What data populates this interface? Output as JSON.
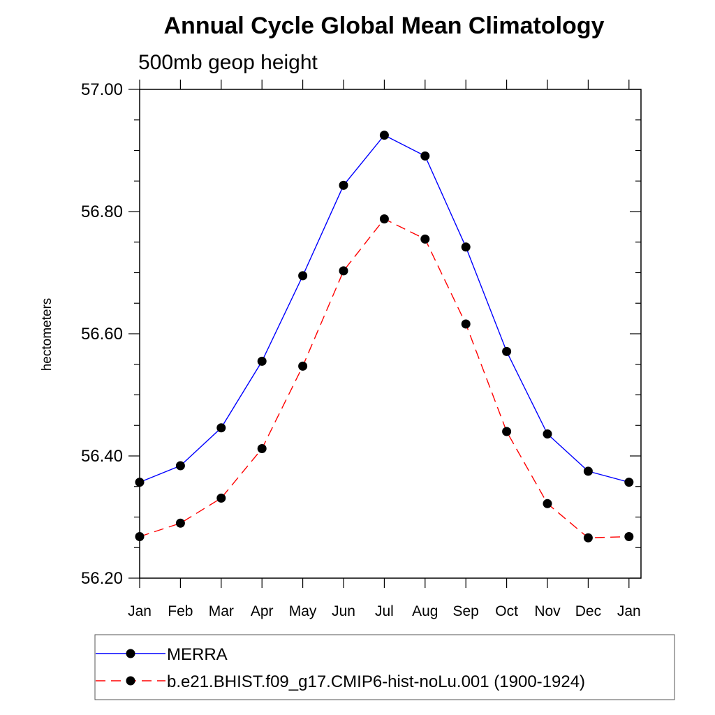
{
  "chart_data": {
    "type": "line",
    "title": "Annual Cycle Global Mean Climatology",
    "subtitle": "500mb geop height",
    "xlabel": "",
    "ylabel": "hectometers",
    "categories": [
      "Jan",
      "Feb",
      "Mar",
      "Apr",
      "May",
      "Jun",
      "Jul",
      "Aug",
      "Sep",
      "Oct",
      "Nov",
      "Dec",
      "Jan"
    ],
    "ylim": [
      56.2,
      57.0
    ],
    "yticks": [
      "56.20",
      "56.40",
      "56.60",
      "56.80",
      "57.00"
    ],
    "grid": false,
    "legend_position": "bottom",
    "series": [
      {
        "name": "MERRA",
        "color": "#0000ff",
        "line_style": "solid",
        "marker": "filled-circle",
        "values": [
          56.357,
          56.384,
          56.446,
          56.555,
          56.695,
          56.843,
          56.925,
          56.891,
          56.742,
          56.571,
          56.436,
          56.375,
          56.357
        ]
      },
      {
        "name": "b.e21.BHIST.f09_g17.CMIP6-hist-noLu.001 (1900-1924)",
        "color": "#ff0000",
        "line_style": "dashed",
        "marker": "filled-circle",
        "values": [
          56.268,
          56.29,
          56.331,
          56.412,
          56.547,
          56.703,
          56.788,
          56.755,
          56.616,
          56.44,
          56.322,
          56.266,
          56.268
        ]
      }
    ]
  }
}
